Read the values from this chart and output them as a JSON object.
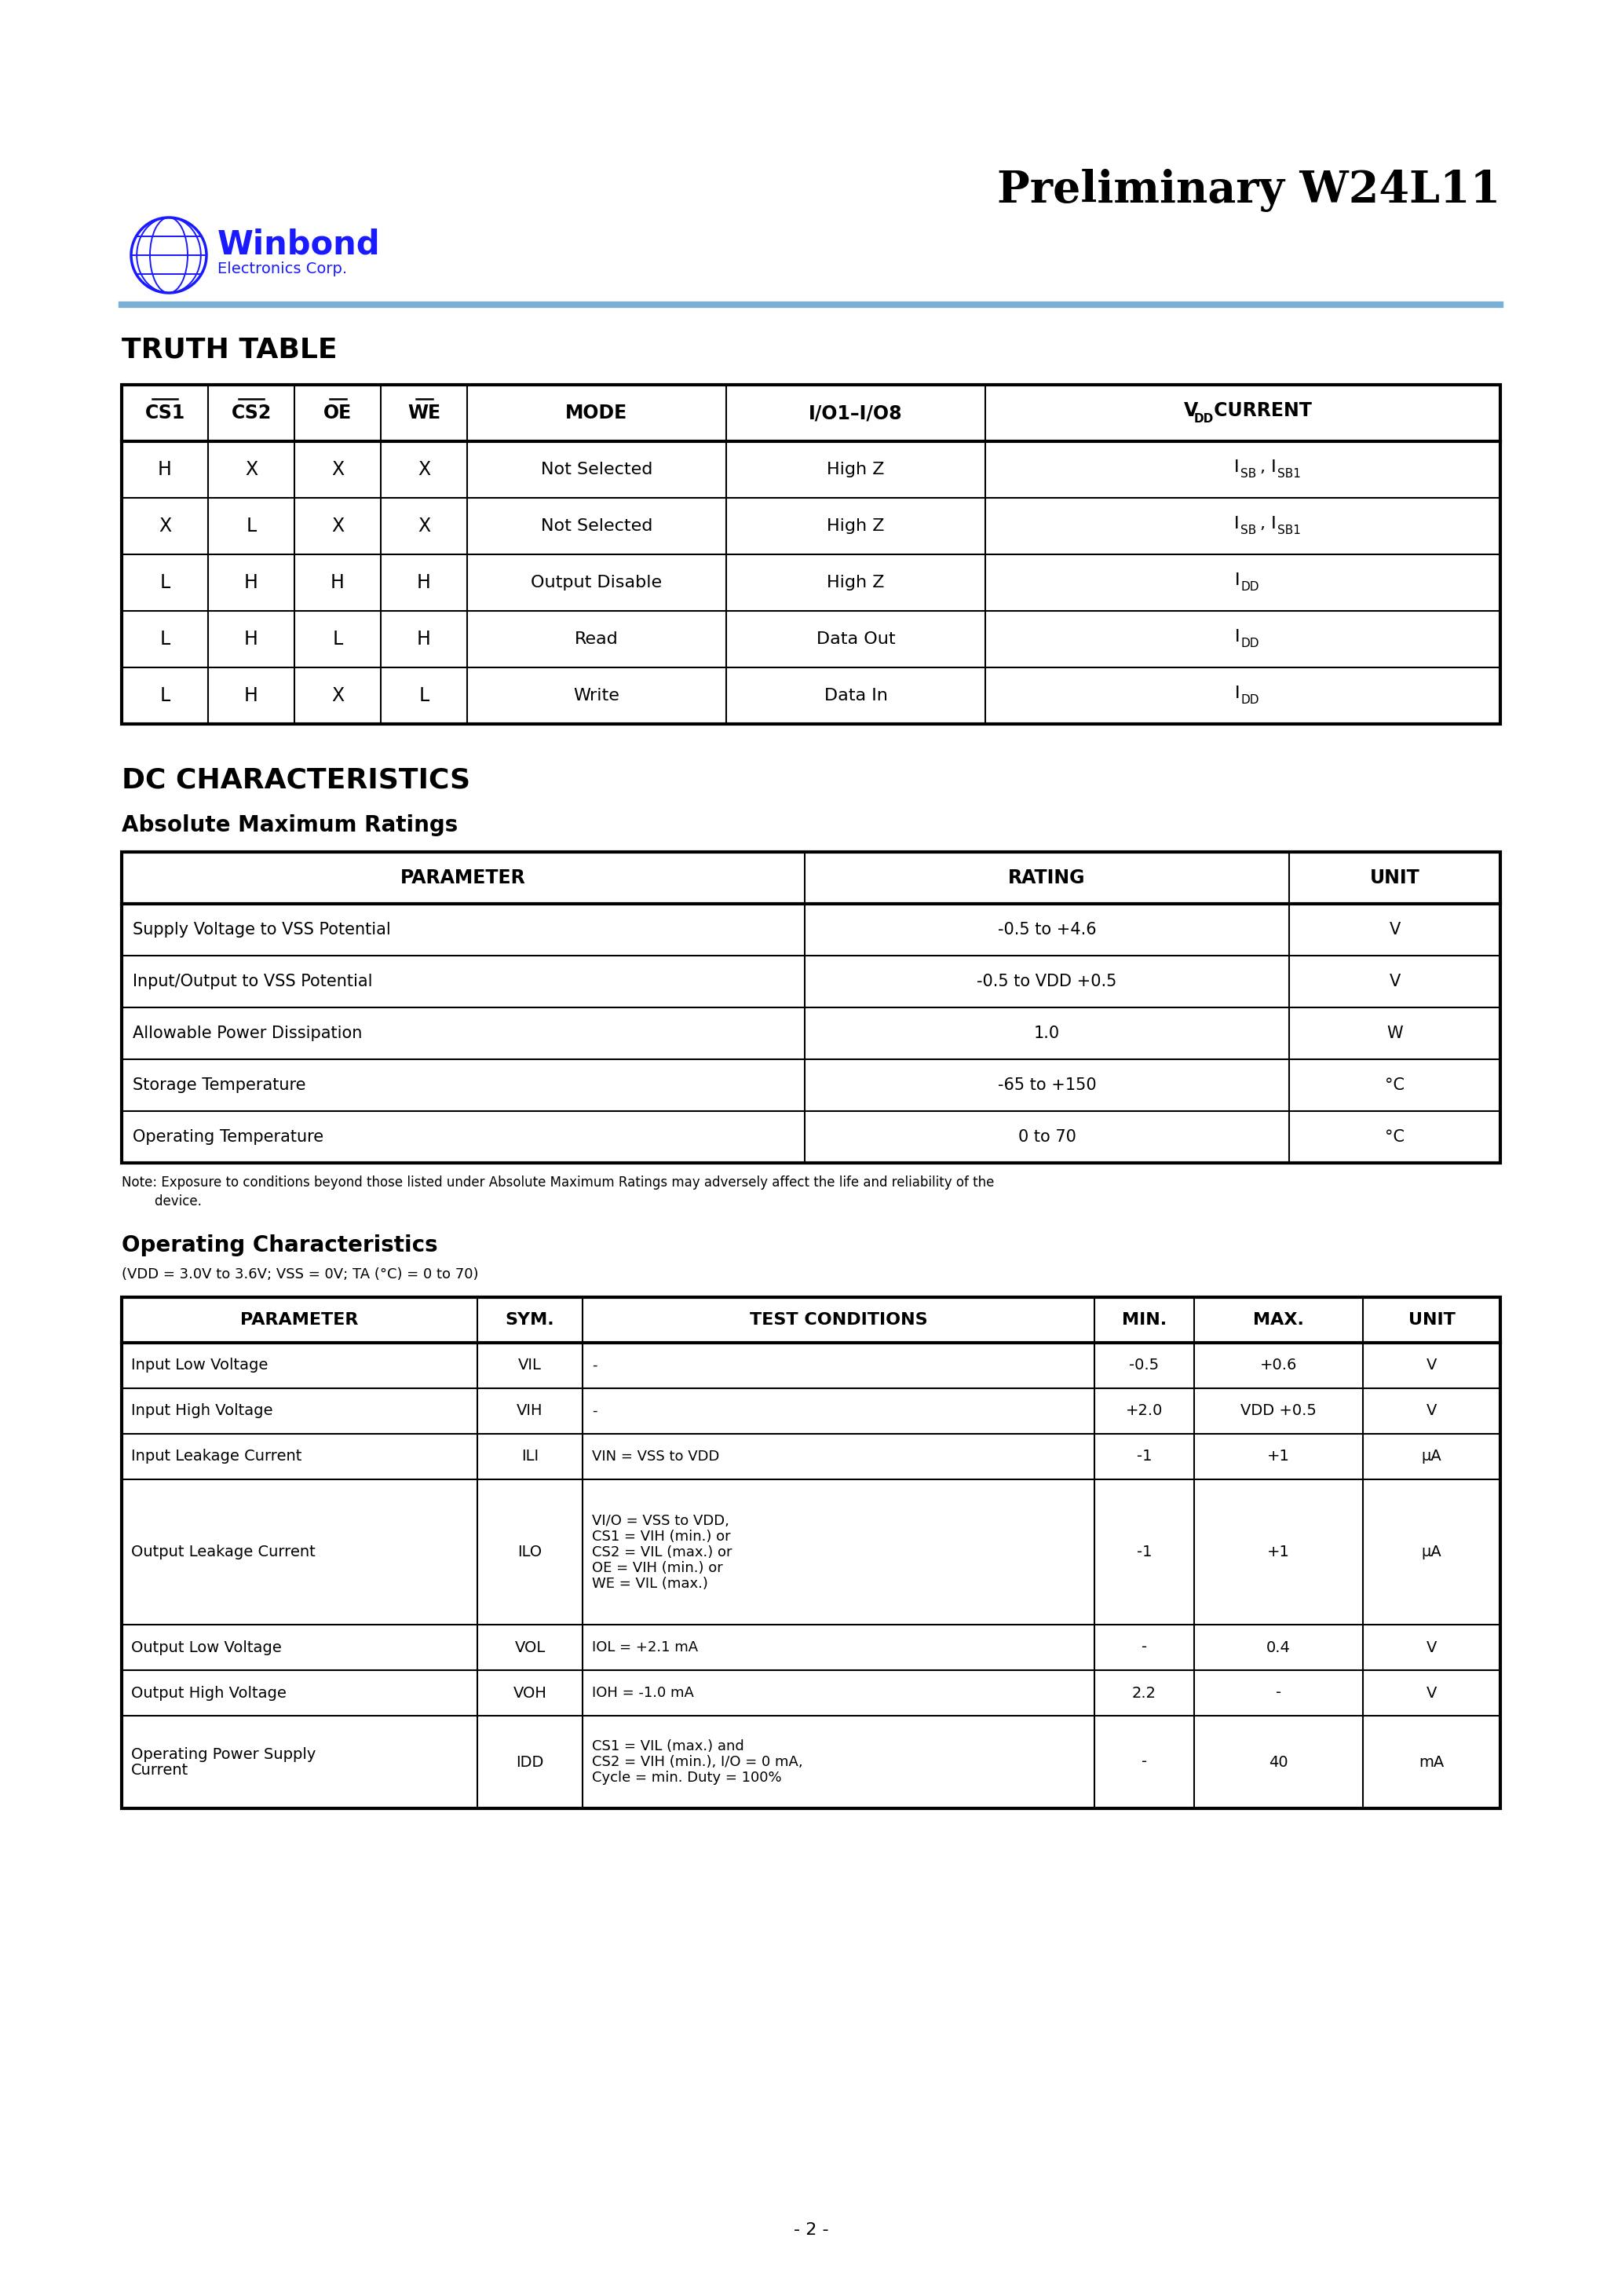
{
  "title": "Preliminary W24L11",
  "page_num": "- 2 -",
  "bg_color": "#ffffff",
  "blue_color": "#1a1aff",
  "line_blue": "#7ab0d4",
  "truth_table_title": "TRUTH TABLE",
  "truth_table_headers": [
    "CS1",
    "CS2",
    "OE",
    "WE",
    "MODE",
    "I/O1–I/O8",
    "VDD CURRENT"
  ],
  "truth_table_header_overline": [
    true,
    true,
    true,
    true,
    false,
    false,
    false
  ],
  "truth_table_rows": [
    [
      "H",
      "X",
      "X",
      "X",
      "Not Selected",
      "High Z",
      "ISB, ISB1"
    ],
    [
      "X",
      "L",
      "X",
      "X",
      "Not Selected",
      "High Z",
      "ISB, ISB1"
    ],
    [
      "L",
      "H",
      "H",
      "H",
      "Output Disable",
      "High Z",
      "IDD"
    ],
    [
      "L",
      "H",
      "L",
      "H",
      "Read",
      "Data Out",
      "IDD"
    ],
    [
      "L",
      "H",
      "X",
      "L",
      "Write",
      "Data In",
      "IDD"
    ]
  ],
  "dc_char_title": "DC CHARACTERISTICS",
  "abs_max_title": "Absolute Maximum Ratings",
  "abs_max_headers": [
    "PARAMETER",
    "RATING",
    "UNIT"
  ],
  "abs_max_rows": [
    [
      "Supply Voltage to VSS Potential",
      "-0.5 to +4.6",
      "V"
    ],
    [
      "Input/Output to VSS Potential",
      "-0.5 to VDD +0.5",
      "V"
    ],
    [
      "Allowable Power Dissipation",
      "1.0",
      "W"
    ],
    [
      "Storage Temperature",
      "-65 to +150",
      "°C"
    ],
    [
      "Operating Temperature",
      "0 to 70",
      "°C"
    ]
  ],
  "abs_max_note1": "Note: Exposure to conditions beyond those listed under Absolute Maximum Ratings may adversely affect the life and reliability of the",
  "abs_max_note2": "        device.",
  "op_char_title": "Operating Characteristics",
  "op_char_subtitle": "(VDD = 3.0V to 3.6V; VSS = 0V; TA (°C) = 0 to 70)",
  "op_char_headers": [
    "PARAMETER",
    "SYM.",
    "TEST CONDITIONS",
    "MIN.",
    "MAX.",
    "UNIT"
  ],
  "op_char_rows": [
    [
      "Input Low Voltage",
      "VIL",
      "-",
      "-0.5",
      "+0.6",
      "V"
    ],
    [
      "Input High Voltage",
      "VIH",
      "-",
      "+2.0",
      "VDD +0.5",
      "V"
    ],
    [
      "Input Leakage Current",
      "ILI",
      "VIN = VSS to VDD",
      "-1",
      "+1",
      "μA"
    ],
    [
      "Output Leakage Current",
      "ILO",
      "VI/O = VSS to VDD,\nCS1 = VIH (min.) or\nCS2 = VIL (max.) or\nOE = VIH (min.) or\nWE = VIL (max.)",
      "-1",
      "+1",
      "μA"
    ],
    [
      "Output Low Voltage",
      "VOL",
      "IOL = +2.1 mA",
      "-",
      "0.4",
      "V"
    ],
    [
      "Output High Voltage",
      "VOH",
      "IOH = -1.0 mA",
      "2.2",
      "-",
      "V"
    ],
    [
      "Operating Power Supply\nCurrent",
      "IDD",
      "CS1 = VIL (max.) and\nCS2 = VIH (min.), I/O = 0 mA,\nCycle = min. Duty = 100%",
      "-",
      "40",
      "mA"
    ]
  ]
}
